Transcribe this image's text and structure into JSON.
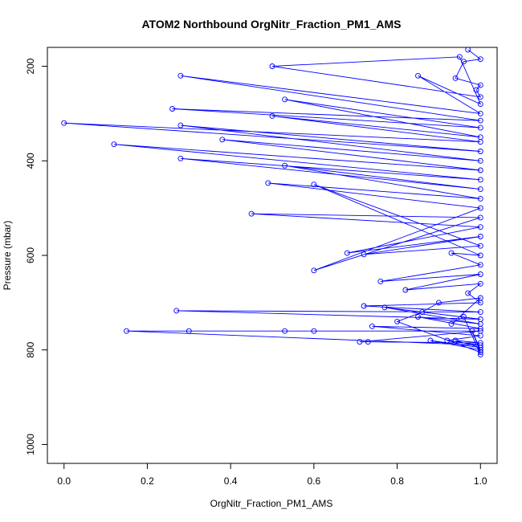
{
  "chart_data": {
    "type": "line",
    "title": "ATOM2 Northbound OrgNitr_Fraction_PM1_AMS",
    "xlabel": "OrgNitr_Fraction_PM1_AMS",
    "ylabel": "Pressure (mbar)",
    "xlim": [
      -0.04,
      1.04
    ],
    "ylim": [
      1040,
      160
    ],
    "y_reversed": true,
    "x_ticks": [
      "0.0",
      "0.2",
      "0.4",
      "0.6",
      "0.8",
      "1.0"
    ],
    "y_ticks": [
      "200",
      "400",
      "600",
      "800",
      "1000"
    ],
    "grid": false,
    "marker": "open-circle",
    "series_color": "#0000ff",
    "series": [
      {
        "x": [
          0.97,
          1.0,
          0.96,
          0.94,
          1.0,
          0.99,
          1.0,
          0.5,
          0.95,
          1.0,
          0.85,
          1.0,
          0.28,
          1.0,
          0.26,
          1.0,
          0.53,
          1.0,
          0.5,
          1.0,
          0.0,
          1.0,
          0.28,
          1.0,
          0.38,
          1.0,
          0.12,
          1.0,
          0.28,
          1.0,
          0.53,
          1.0,
          0.49,
          1.0,
          0.6,
          1.0,
          0.45,
          1.0,
          0.68,
          1.0,
          0.72,
          1.0,
          0.6,
          1.0,
          0.93,
          1.0,
          0.76,
          1.0,
          0.82,
          1.0,
          0.97,
          1.0,
          0.72,
          1.0,
          0.27,
          1.0,
          0.77,
          1.0,
          0.85,
          1.0,
          0.74,
          1.0,
          0.92,
          1.0,
          0.15,
          0.3,
          0.53,
          0.6,
          1.0,
          0.71,
          0.73,
          1.0,
          0.94,
          1.0,
          0.88,
          1.0,
          0.98,
          1.0,
          0.8,
          0.86,
          0.9,
          1.0,
          0.93,
          0.96,
          1.0
        ],
        "y": [
          165,
          185,
          190,
          225,
          240,
          250,
          265,
          200,
          180,
          280,
          220,
          300,
          220,
          315,
          290,
          330,
          270,
          350,
          305,
          360,
          320,
          380,
          325,
          400,
          355,
          420,
          365,
          440,
          395,
          460,
          410,
          480,
          447,
          500,
          632,
          520,
          512,
          540,
          595,
          560,
          598,
          580,
          450,
          600,
          595,
          620,
          655,
          640,
          673,
          660,
          680,
          700,
          707,
          720,
          717,
          735,
          710,
          745,
          730,
          755,
          750,
          770,
          780,
          790,
          760,
          760,
          760,
          760,
          760,
          783,
          783,
          785,
          780,
          795,
          780,
          800,
          760,
          805,
          740,
          720,
          700,
          690,
          745,
          730,
          810
        ]
      }
    ]
  }
}
